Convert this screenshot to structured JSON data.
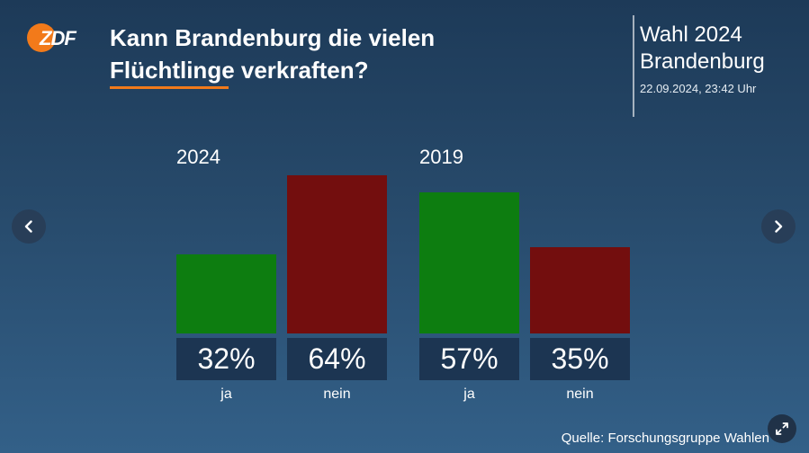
{
  "header": {
    "logo_text": "ZDF",
    "title_line1": "Kann Brandenburg die vielen",
    "title_line2": "Flüchtlinge verkraften?",
    "election_line1": "Wahl 2024",
    "election_line2": "Brandenburg",
    "timestamp": "22.09.2024, 23:42 Uhr"
  },
  "colors": {
    "ja": "#0d7d10",
    "nein": "#730e0e",
    "accent": "#f27a1a"
  },
  "chart_data": {
    "type": "bar",
    "categories": [
      "ja",
      "nein"
    ],
    "groups": [
      {
        "name": "2024",
        "values": [
          32,
          64
        ]
      },
      {
        "name": "2019",
        "values": [
          57,
          35
        ]
      }
    ],
    "value_labels": [
      [
        "32%",
        "64%"
      ],
      [
        "57%",
        "35%"
      ]
    ],
    "ylim": [
      0,
      100
    ]
  },
  "footer": {
    "source": "Quelle: Forschungsgruppe Wahlen"
  },
  "icons": {
    "prev": "chevron-left-icon",
    "next": "chevron-right-icon",
    "expand": "expand-icon"
  }
}
